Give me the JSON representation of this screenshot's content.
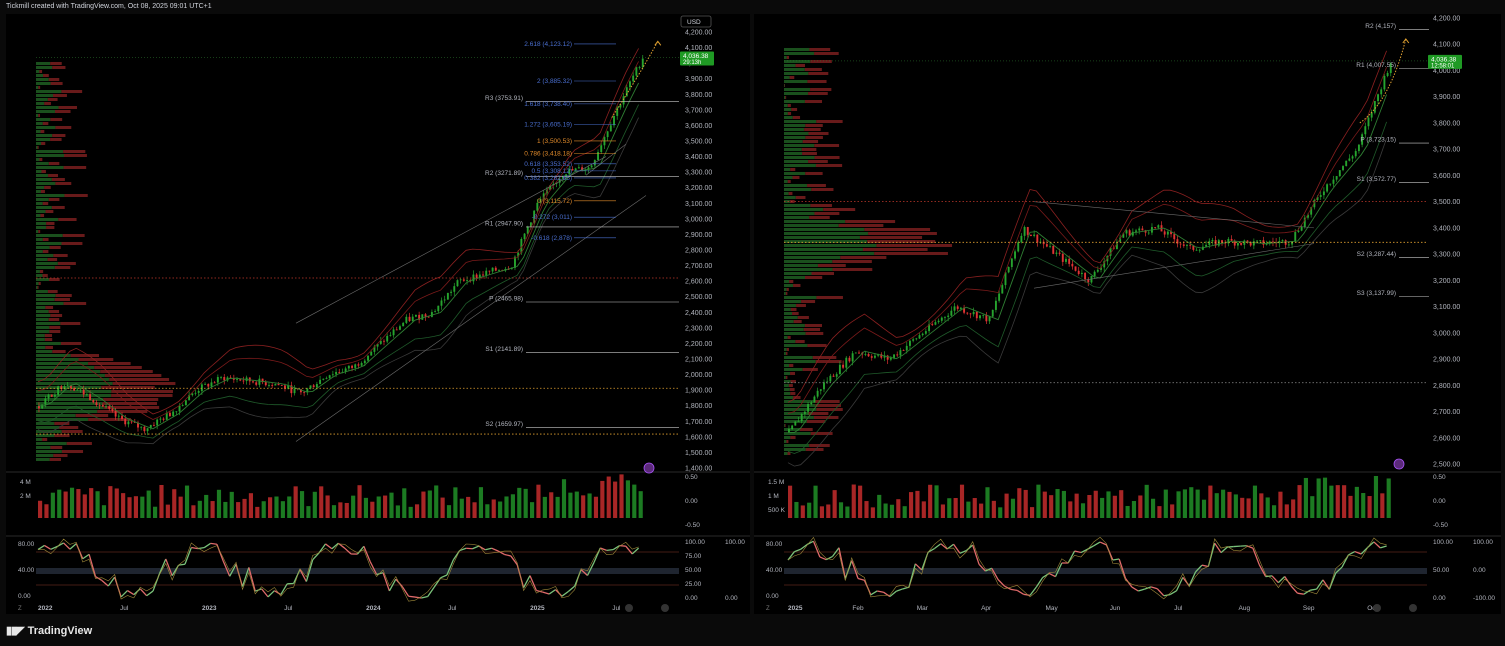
{
  "header": {
    "text": "Tickmill created with TradingView.com, Oct 08, 2025 09:01 UTC+1"
  },
  "footer": {
    "brand": "TradingView",
    "logo": "tradingview-logo"
  },
  "colors": {
    "up": "#26a42e",
    "down": "#e03333",
    "price_tag": "#1f9a24",
    "fib_blue": "#4a6fd0",
    "fib_orange": "#e08a2a",
    "pivot": "#c8c8c8",
    "dotted_red": "#c0392b",
    "dotted_orange": "#e0a030"
  },
  "left_chart": {
    "currency": "USD",
    "price_tag": {
      "price": "4,036.38",
      "timer": "29:13h"
    },
    "y_ticks": [
      "4,200.00",
      "4,100.00",
      "4,000.00",
      "3,900.00",
      "3,800.00",
      "3,700.00",
      "3,600.00",
      "3,500.00",
      "3,400.00",
      "3,300.00",
      "3,200.00",
      "3,100.00",
      "3,000.00",
      "2,900.00",
      "2,800.00",
      "2,700.00",
      "2,600.00",
      "2,500.00",
      "2,400.00",
      "2,300.00",
      "2,200.00",
      "2,100.00",
      "2,000.00",
      "1,900.00",
      "1,800.00",
      "1,700.00",
      "1,600.00",
      "1,500.00",
      "1,400.00"
    ],
    "x_ticks": [
      "2022",
      "Jul",
      "2023",
      "Jul",
      "2024",
      "Jul",
      "2025",
      "Jul"
    ],
    "fib_labels": [
      {
        "text": "2.618 (4,123.12)",
        "price": 4123.12,
        "color": "blue"
      },
      {
        "text": "2 (3,885.32)",
        "price": 3885.32,
        "color": "blue"
      },
      {
        "text": "1.618 (3,738.40)",
        "price": 3738.4,
        "color": "blue"
      },
      {
        "text": "1.272 (3,605.19)",
        "price": 3605.19,
        "color": "blue"
      },
      {
        "text": "1 (3,500.53)",
        "price": 3500.53,
        "color": "orange"
      },
      {
        "text": "0.786 (3,418.18)",
        "price": 3418.18,
        "color": "orange"
      },
      {
        "text": "0.618 (3,353.52)",
        "price": 3353.52,
        "color": "blue"
      },
      {
        "text": "0.5 (3,308.12)",
        "price": 3308.12,
        "color": "blue"
      },
      {
        "text": "0.382 (3,262.65)",
        "price": 3262.65,
        "color": "blue"
      },
      {
        "text": "0 (3,115.72)",
        "price": 3115.72,
        "color": "orange"
      },
      {
        "text": "-0.272 (3,011)",
        "price": 3011,
        "color": "blue"
      },
      {
        "text": "-0.618 (2,878)",
        "price": 2878,
        "color": "blue"
      }
    ],
    "pivot_labels": [
      {
        "text": "R3 (3753.91)",
        "price": 3753.91
      },
      {
        "text": "R2 (3271.89)",
        "price": 3271.89
      },
      {
        "text": "R1 (2947.90)",
        "price": 2947.9
      },
      {
        "text": "P (2465.98)",
        "price": 2465.98
      },
      {
        "text": "S1 (2141.89)",
        "price": 2141.89
      },
      {
        "text": "S2 (1659.97)",
        "price": 1659.97
      }
    ],
    "volume_ticks": [
      "4 M",
      "2 M"
    ],
    "volume_right_ticks": [
      "0.50",
      "0.00",
      "-0.50"
    ],
    "osc_left_ticks": [
      "80.00",
      "40.00",
      "0.00"
    ],
    "osc_right_ticks": [
      "100.00",
      "75.00",
      "50.00",
      "25.00",
      "0.00"
    ],
    "osc_right2_ticks": [
      "100.00",
      "0.00"
    ]
  },
  "right_chart": {
    "price_tag": {
      "price": "4,036.38",
      "timer": "12:58:01"
    },
    "y_ticks": [
      "4,200.00",
      "4,100.00",
      "4,000.00",
      "3,900.00",
      "3,800.00",
      "3,700.00",
      "3,600.00",
      "3,500.00",
      "3,400.00",
      "3,300.00",
      "3,200.00",
      "3,100.00",
      "3,000.00",
      "2,900.00",
      "2,800.00",
      "2,700.00",
      "2,600.00",
      "2,500.00"
    ],
    "x_ticks": [
      "2025",
      "Feb",
      "Mar",
      "Apr",
      "May",
      "Jun",
      "Jul",
      "Aug",
      "Sep",
      "Oct"
    ],
    "pivot_labels": [
      {
        "text": "R2 (4,157)",
        "price": 4157
      },
      {
        "text": "R1 (4,007.55)",
        "price": 4007.55
      },
      {
        "text": "P (3,723.15)",
        "price": 3723.15
      },
      {
        "text": "S1 (3,572.77)",
        "price": 3572.77
      },
      {
        "text": "S2 (3,287.44)",
        "price": 3287.44
      },
      {
        "text": "S3 (3,137.99)",
        "price": 3137.99
      }
    ],
    "volume_ticks": [
      "1.5 M",
      "1 M",
      "500 K"
    ],
    "volume_right_ticks": [
      "0.50",
      "0.00",
      "-0.50"
    ],
    "osc_left_ticks": [
      "80.00",
      "40.00",
      "0.00"
    ],
    "osc_right_ticks": [
      "100.00",
      "50.00",
      "0.00"
    ],
    "osc_right2_ticks": [
      "100.00",
      "0.00",
      "-100.00"
    ]
  },
  "chart_data": [
    {
      "type": "candlestick",
      "title": "",
      "ylim": [
        1400,
        4200
      ],
      "x_categories": [
        "2022",
        "Jul",
        "2023",
        "Jul",
        "2024",
        "Jul",
        "2025",
        "Jul"
      ],
      "close_path": [
        {
          "x": "2022",
          "y": 1800
        },
        {
          "x": "2022-03",
          "y": 1950
        },
        {
          "x": "2022-05",
          "y": 1850
        },
        {
          "x": "Jul",
          "y": 1720
        },
        {
          "x": "2022-09",
          "y": 1650
        },
        {
          "x": "2022-11",
          "y": 1750
        },
        {
          "x": "2023",
          "y": 1900
        },
        {
          "x": "2023-03",
          "y": 1980
        },
        {
          "x": "2023-05",
          "y": 1960
        },
        {
          "x": "Jul",
          "y": 1940
        },
        {
          "x": "2023-09",
          "y": 1880
        },
        {
          "x": "2023-11",
          "y": 2000
        },
        {
          "x": "2024",
          "y": 2050
        },
        {
          "x": "2024-03",
          "y": 2200
        },
        {
          "x": "2024-05",
          "y": 2350
        },
        {
          "x": "Jul",
          "y": 2400
        },
        {
          "x": "2024-09",
          "y": 2600
        },
        {
          "x": "2024-11",
          "y": 2650
        },
        {
          "x": "2025",
          "y": 2700
        },
        {
          "x": "2025-03",
          "y": 3100
        },
        {
          "x": "2025-05",
          "y": 3300
        },
        {
          "x": "Jul",
          "y": 3330
        },
        {
          "x": "2025-09",
          "y": 3700
        },
        {
          "x": "2025-10",
          "y": 4036.38
        }
      ],
      "last_price": 4036.38
    },
    {
      "type": "candlestick",
      "title": "",
      "ylim": [
        2500,
        4200
      ],
      "x_categories": [
        "2025",
        "Feb",
        "Mar",
        "Apr",
        "May",
        "Jun",
        "Jul",
        "Aug",
        "Sep",
        "Oct"
      ],
      "close_path": [
        {
          "x": "2025",
          "y": 2620
        },
        {
          "x": "Feb",
          "y": 2800
        },
        {
          "x": "Feb-15",
          "y": 2930
        },
        {
          "x": "Mar",
          "y": 2900
        },
        {
          "x": "Mar-15",
          "y": 3000
        },
        {
          "x": "Apr",
          "y": 3100
        },
        {
          "x": "Apr-10",
          "y": 3050
        },
        {
          "x": "Apr-20",
          "y": 3400
        },
        {
          "x": "May",
          "y": 3300
        },
        {
          "x": "May-15",
          "y": 3200
        },
        {
          "x": "Jun",
          "y": 3380
        },
        {
          "x": "Jun-15",
          "y": 3400
        },
        {
          "x": "Jul",
          "y": 3320
        },
        {
          "x": "Jul-15",
          "y": 3350
        },
        {
          "x": "Aug",
          "y": 3340
        },
        {
          "x": "Aug-15",
          "y": 3350
        },
        {
          "x": "Sep",
          "y": 3550
        },
        {
          "x": "Sep-15",
          "y": 3700
        },
        {
          "x": "Oct",
          "y": 4036.38
        }
      ],
      "last_price": 4036.38
    }
  ]
}
